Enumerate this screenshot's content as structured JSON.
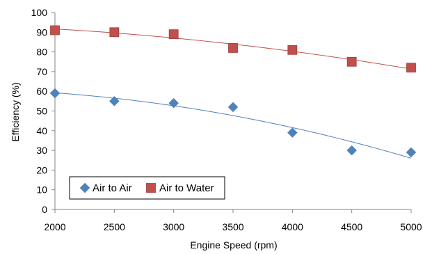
{
  "chart_data": {
    "type": "scatter",
    "xlabel": "Engine Speed  (rpm)",
    "ylabel": "Efficiency  (%)",
    "xlim": [
      2000,
      5000
    ],
    "ylim": [
      0,
      100
    ],
    "x_ticks": [
      2000,
      2500,
      3000,
      3500,
      4000,
      4500,
      5000
    ],
    "y_ticks": [
      0,
      10,
      20,
      30,
      40,
      50,
      60,
      70,
      80,
      90,
      100
    ],
    "grid": false,
    "legend_position": "bottom-left",
    "series": [
      {
        "name": "Air to Air",
        "marker": "diamond",
        "color": "#4F81BD",
        "x": [
          2000,
          2500,
          3000,
          3500,
          4000,
          4500,
          5000
        ],
        "y": [
          59,
          55,
          54,
          52,
          39,
          30,
          29
        ],
        "trendline": {
          "type": "polynomial",
          "color": "#4F81BD"
        }
      },
      {
        "name": "Air to Water",
        "marker": "square",
        "color": "#C0504D",
        "x": [
          2000,
          2500,
          3000,
          3500,
          4000,
          4500,
          5000
        ],
        "y": [
          91,
          90,
          89,
          82,
          81,
          75,
          72
        ],
        "trendline": {
          "type": "polynomial",
          "color": "#C0504D"
        }
      }
    ]
  }
}
